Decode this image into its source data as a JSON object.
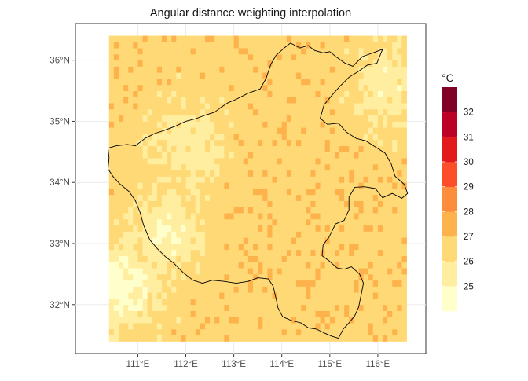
{
  "chart_data": {
    "type": "heatmap",
    "title": "Angular distance weighting interpolation",
    "xlabel": "",
    "ylabel": "",
    "x_ticks": [
      {
        "value": 111,
        "label": "111°E"
      },
      {
        "value": 112,
        "label": "112°E"
      },
      {
        "value": 113,
        "label": "113°E"
      },
      {
        "value": 114,
        "label": "114°E"
      },
      {
        "value": 115,
        "label": "115°E"
      },
      {
        "value": 116,
        "label": "116°E"
      }
    ],
    "y_ticks": [
      {
        "value": 32,
        "label": "32°N"
      },
      {
        "value": 33,
        "label": "33°N"
      },
      {
        "value": 34,
        "label": "34°N"
      },
      {
        "value": 35,
        "label": "35°N"
      },
      {
        "value": 36,
        "label": "36°N"
      }
    ],
    "xlim": [
      109.7,
      117.0
    ],
    "ylim": [
      31.2,
      36.6
    ],
    "grid_extent": {
      "lon": [
        110.4,
        116.6
      ],
      "lat": [
        31.4,
        36.4
      ],
      "step": 0.1
    },
    "legend": {
      "title": "°C",
      "position": "right",
      "breaks": [
        25,
        26,
        27,
        28,
        29,
        30,
        31,
        32
      ],
      "colors": [
        "#ffffcc",
        "#ffeda0",
        "#fed976",
        "#feb24c",
        "#fd8d3c",
        "#fc4e2a",
        "#e31a1c",
        "#bd0026",
        "#800026"
      ]
    },
    "warm_zones": [
      {
        "lon": 115.1,
        "lat": 31.9,
        "peak": 30.0
      },
      {
        "lon": 115.8,
        "lat": 31.7,
        "peak": 29.6
      },
      {
        "lon": 116.4,
        "lat": 31.6,
        "peak": 30.4
      },
      {
        "lon": 114.7,
        "lat": 31.8,
        "peak": 29.2
      },
      {
        "lon": 114.3,
        "lat": 35.1,
        "peak": 29.6
      },
      {
        "lon": 114.6,
        "lat": 34.8,
        "peak": 28.6
      },
      {
        "lon": 113.0,
        "lat": 34.2,
        "peak": 28.3
      },
      {
        "lon": 112.3,
        "lat": 33.9,
        "peak": 28.0
      },
      {
        "lon": 115.5,
        "lat": 34.6,
        "peak": 28.0
      },
      {
        "lon": 116.0,
        "lat": 33.6,
        "peak": 28.3
      },
      {
        "lon": 115.9,
        "lat": 32.9,
        "peak": 27.9
      },
      {
        "lon": 116.3,
        "lat": 34.1,
        "peak": 27.8
      },
      {
        "lon": 111.8,
        "lat": 35.4,
        "peak": 27.5
      },
      {
        "lon": 110.9,
        "lat": 36.1,
        "peak": 27.0
      }
    ],
    "cool_zones": [
      {
        "lon": 110.7,
        "lat": 32.3,
        "low": 24.4
      },
      {
        "lon": 111.6,
        "lat": 33.2,
        "low": 25.0
      },
      {
        "lon": 116.2,
        "lat": 35.6,
        "low": 25.3
      },
      {
        "lon": 112.0,
        "lat": 34.6,
        "low": 25.5
      }
    ],
    "background_value": 26.6,
    "outline": [
      [
        112.72,
        35.22
      ],
      [
        112.87,
        35.3
      ],
      [
        113.05,
        35.36
      ],
      [
        113.3,
        35.46
      ],
      [
        113.55,
        35.53
      ],
      [
        113.67,
        35.7
      ],
      [
        113.77,
        35.93
      ],
      [
        113.88,
        36.08
      ],
      [
        114.05,
        36.2
      ],
      [
        114.18,
        36.28
      ],
      [
        114.38,
        36.2
      ],
      [
        114.55,
        36.24
      ],
      [
        114.68,
        36.16
      ],
      [
        114.86,
        36.12
      ],
      [
        115.0,
        36.14
      ],
      [
        115.14,
        36.05
      ],
      [
        115.32,
        35.95
      ],
      [
        115.48,
        35.9
      ],
      [
        115.68,
        36.06
      ],
      [
        115.9,
        36.12
      ],
      [
        116.1,
        36.18
      ],
      [
        115.98,
        35.95
      ],
      [
        115.78,
        35.92
      ],
      [
        115.6,
        35.82
      ],
      [
        115.4,
        35.72
      ],
      [
        115.22,
        35.58
      ],
      [
        115.06,
        35.44
      ],
      [
        114.88,
        35.27
      ],
      [
        114.8,
        35.05
      ],
      [
        114.95,
        34.95
      ],
      [
        115.18,
        34.97
      ],
      [
        115.35,
        34.82
      ],
      [
        115.55,
        34.72
      ],
      [
        115.75,
        34.68
      ],
      [
        115.95,
        34.58
      ],
      [
        116.15,
        34.48
      ],
      [
        116.28,
        34.3
      ],
      [
        116.36,
        34.1
      ],
      [
        116.55,
        33.97
      ],
      [
        116.62,
        33.82
      ],
      [
        116.5,
        33.74
      ],
      [
        116.3,
        33.82
      ],
      [
        116.1,
        33.75
      ],
      [
        115.95,
        33.9
      ],
      [
        115.72,
        33.93
      ],
      [
        115.52,
        33.92
      ],
      [
        115.4,
        33.76
      ],
      [
        115.4,
        33.55
      ],
      [
        115.3,
        33.38
      ],
      [
        115.12,
        33.32
      ],
      [
        114.98,
        33.1
      ],
      [
        114.86,
        32.98
      ],
      [
        114.84,
        32.8
      ],
      [
        114.98,
        32.72
      ],
      [
        115.15,
        32.6
      ],
      [
        115.3,
        32.58
      ],
      [
        115.45,
        32.62
      ],
      [
        115.62,
        32.5
      ],
      [
        115.7,
        32.35
      ],
      [
        115.65,
        32.15
      ],
      [
        115.6,
        31.96
      ],
      [
        115.52,
        31.82
      ],
      [
        115.4,
        31.7
      ],
      [
        115.28,
        31.6
      ],
      [
        115.18,
        31.45
      ],
      [
        115.05,
        31.48
      ],
      [
        114.9,
        31.53
      ],
      [
        114.72,
        31.6
      ],
      [
        114.55,
        31.62
      ],
      [
        114.4,
        31.7
      ],
      [
        114.2,
        31.74
      ],
      [
        114.02,
        31.8
      ],
      [
        113.92,
        31.95
      ],
      [
        113.88,
        32.1
      ],
      [
        113.82,
        32.3
      ],
      [
        113.72,
        32.42
      ],
      [
        113.5,
        32.44
      ],
      [
        113.3,
        32.38
      ],
      [
        113.05,
        32.35
      ],
      [
        112.8,
        32.38
      ],
      [
        112.55,
        32.4
      ],
      [
        112.35,
        32.35
      ],
      [
        112.15,
        32.4
      ],
      [
        111.95,
        32.52
      ],
      [
        111.75,
        32.68
      ],
      [
        111.58,
        32.78
      ],
      [
        111.4,
        32.92
      ],
      [
        111.25,
        33.06
      ],
      [
        111.12,
        33.3
      ],
      [
        111.05,
        33.5
      ],
      [
        110.95,
        33.7
      ],
      [
        110.82,
        33.85
      ],
      [
        110.62,
        33.98
      ],
      [
        110.48,
        34.1
      ],
      [
        110.38,
        34.22
      ],
      [
        110.4,
        34.4
      ],
      [
        110.38,
        34.56
      ],
      [
        110.55,
        34.6
      ],
      [
        110.78,
        34.62
      ],
      [
        110.95,
        34.6
      ],
      [
        111.15,
        34.72
      ],
      [
        111.35,
        34.8
      ],
      [
        111.55,
        34.85
      ],
      [
        111.78,
        34.92
      ],
      [
        112.0,
        35.0
      ],
      [
        112.2,
        35.04
      ],
      [
        112.4,
        35.1
      ],
      [
        112.6,
        35.15
      ],
      [
        112.72,
        35.22
      ]
    ]
  }
}
